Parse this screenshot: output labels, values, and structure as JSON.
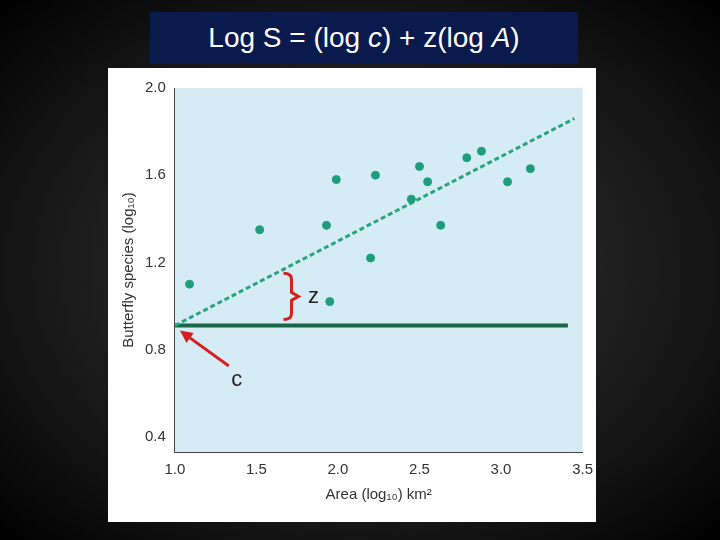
{
  "chart_data": {
    "type": "scatter",
    "title": "Log S = (log c) + z(log A)",
    "x_label": "Area (log₁₀) km²",
    "y_label": "Butterfly species (log₁₀)",
    "xlim": [
      1.0,
      3.5
    ],
    "ylim": [
      0.33,
      2.0
    ],
    "xticks": [
      {
        "value": 1,
        "label": "1.0"
      },
      1.5,
      {
        "value": 2,
        "label": "2.0"
      },
      2.5,
      {
        "value": 3,
        "label": "3.0"
      },
      3.5
    ],
    "yticks": [
      0.4,
      0.8,
      1.2,
      1.6,
      {
        "value": 2,
        "label": "2.0"
      }
    ],
    "grid": false,
    "series": [
      {
        "type": "scatter",
        "color": "#1f9e7d",
        "marker": "circle",
        "x": [
          1.09,
          1.52,
          1.93,
          1.99,
          1.95,
          2.23,
          2.2,
          2.5,
          2.55,
          2.45,
          2.63,
          2.79,
          2.88,
          3.04,
          3.18
        ],
        "values": [
          1.1,
          1.35,
          1.37,
          1.58,
          1.02,
          1.6,
          1.22,
          1.64,
          1.57,
          1.49,
          1.37,
          1.68,
          1.71,
          1.57,
          1.63
        ]
      },
      {
        "type": "line",
        "color": "#2ba37e",
        "line_style": "dashed",
        "x": [
          1.0,
          3.45
        ],
        "values": [
          0.91,
          1.86
        ]
      },
      {
        "type": "line",
        "color": "#1a6648",
        "line_style": "solid",
        "x": [
          1.0,
          3.41
        ],
        "values": [
          0.91,
          0.91
        ]
      }
    ],
    "annotations": [
      {
        "text": "z",
        "x": 1.85,
        "y": 1.04
      },
      {
        "text": "c",
        "x": 1.38,
        "y": 0.66
      }
    ]
  }
}
